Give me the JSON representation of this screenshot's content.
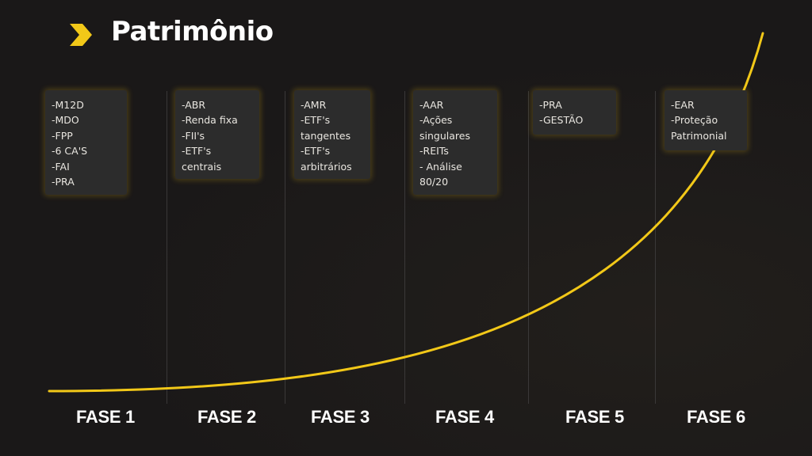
{
  "title": "Patrimônio",
  "colors": {
    "background": "#1a1818",
    "accent": "#f2c818",
    "card": "#2c2c2c",
    "divider": "#3a3838"
  },
  "icons": {
    "title": "chevron-right-icon"
  },
  "phases": [
    {
      "label": "FASE 1",
      "items": [
        "-M12D",
        "-MDO",
        "-FPP",
        "-6 CA'S",
        "-FAI",
        "-PRA"
      ]
    },
    {
      "label": "FASE 2",
      "items": [
        "-ABR",
        "-Renda fixa",
        "-FII's",
        "-ETF's",
        "centrais"
      ]
    },
    {
      "label": "FASE 3",
      "items": [
        "-AMR",
        "-ETF's",
        "tangentes",
        "-ETF's",
        "arbitrários"
      ]
    },
    {
      "label": "FASE 4",
      "items": [
        "-AAR",
        "-Ações",
        "singulares",
        "-REITs",
        "- Análise",
        "80/20"
      ]
    },
    {
      "label": "FASE 5",
      "items": [
        "-PRA",
        "-GESTÃO"
      ]
    },
    {
      "label": "FASE 6",
      "items": [
        "-EAR",
        "-Proteção",
        "Patrimonial"
      ]
    }
  ]
}
